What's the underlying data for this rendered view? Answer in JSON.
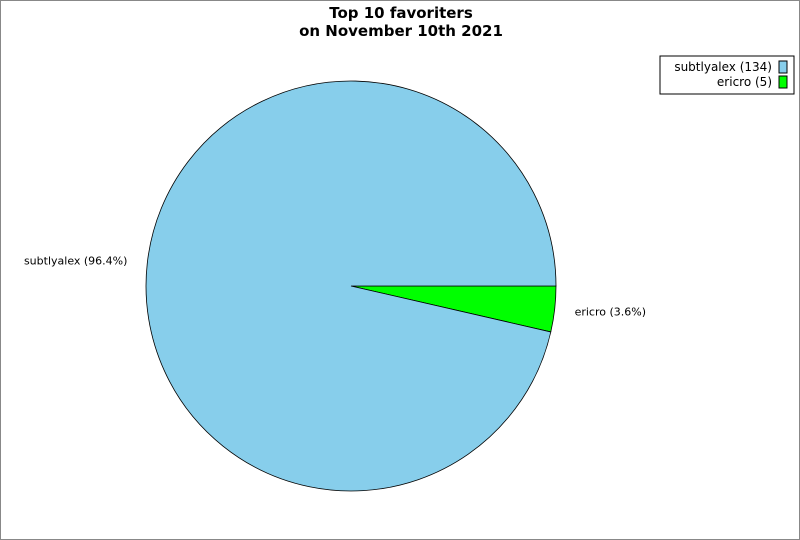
{
  "chart_data": {
    "type": "pie",
    "title": [
      "Top 10 favoriters",
      "on November 10th 2021"
    ],
    "slices": [
      {
        "label": "subtlyalex",
        "value": 134,
        "percent_label": "subtlyalex (96.4%)",
        "legend_label": "subtlyalex (134)",
        "color": "#87ceeb"
      },
      {
        "label": "ericro",
        "value": 5,
        "percent_label": "ericro (3.6%)",
        "legend_label": "ericro (5)",
        "color": "#00ff00"
      }
    ],
    "start_angle_deg": 0,
    "direction": "clockwise-from-ericro",
    "legend_position": "top-right"
  }
}
